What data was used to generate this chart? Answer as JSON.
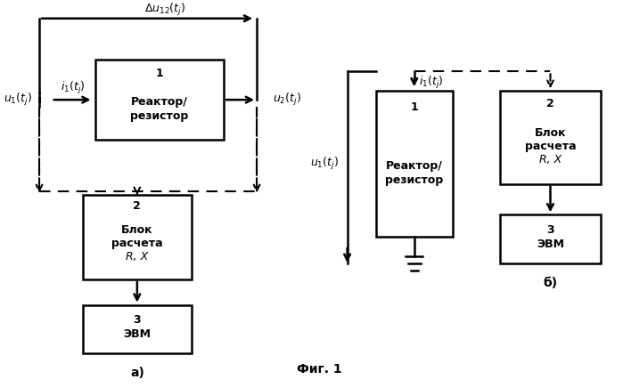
{
  "fig_width": 6.99,
  "fig_height": 4.36,
  "bg_color": "#ffffff",
  "fig1_label": "а)",
  "fig2_label": "б)",
  "bottom_label": "Фиг. 1"
}
